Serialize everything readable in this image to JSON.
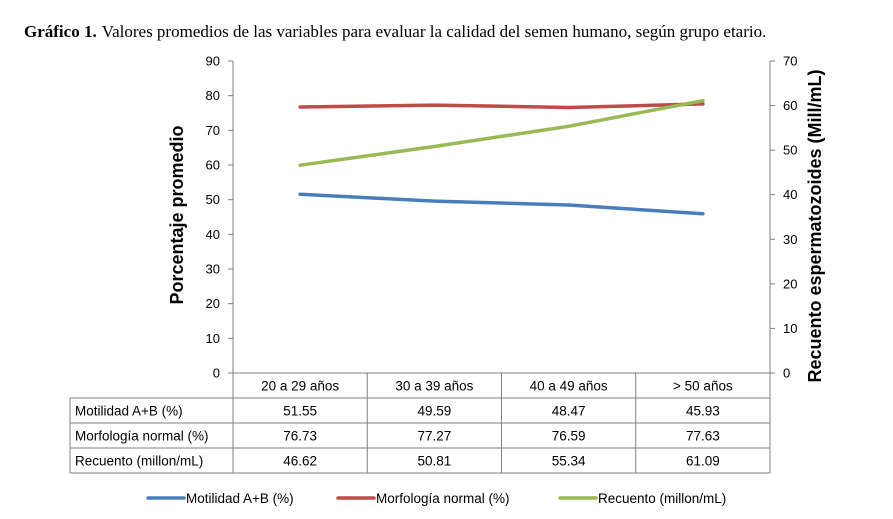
{
  "caption": {
    "label": "Gráfico 1.",
    "text": "Valores promedios de las variables para evaluar la calidad del semen humano, según grupo etario."
  },
  "chart_data": {
    "type": "line",
    "categories": [
      "20 a 29 años",
      "30 a 39 años",
      "40 a 49 años",
      "> 50 años"
    ],
    "series": [
      {
        "name": "Motilidad A+B (%)",
        "axis": "left",
        "color": "#4a7ebb",
        "values": [
          51.55,
          49.59,
          48.47,
          45.93
        ],
        "labels": [
          "51.55",
          "49.59",
          "48.47",
          "45.93"
        ]
      },
      {
        "name": "Morfología normal (%)",
        "axis": "left",
        "color": "#be4b48",
        "values": [
          76.73,
          77.27,
          76.59,
          77.63
        ],
        "labels": [
          "76.73",
          "77.27",
          "76.59",
          "77.63"
        ]
      },
      {
        "name": "Recuento (millon/mL)",
        "axis": "right",
        "color": "#98b954",
        "values": [
          46.62,
          50.81,
          55.34,
          61.09
        ],
        "labels": [
          "46.62",
          "50.81",
          "55.34",
          "61.09"
        ]
      }
    ],
    "ylabel": "Porcentaje promedio",
    "y2label": "Recuento espermatozoides (Mill/mL)",
    "ylim": [
      0,
      90
    ],
    "y2lim": [
      0,
      70
    ],
    "yticks": [
      "0",
      "10",
      "20",
      "30",
      "40",
      "50",
      "60",
      "70",
      "80",
      "90"
    ],
    "y2ticks": [
      "0",
      "10",
      "20",
      "30",
      "40",
      "50",
      "60",
      "70"
    ],
    "data_table": true,
    "legend": "bottom"
  }
}
